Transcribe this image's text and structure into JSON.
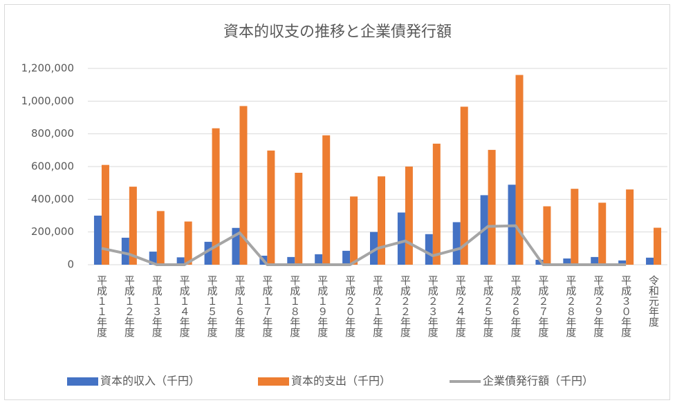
{
  "chart_data": {
    "type": "bar",
    "title": "資本的収支の推移と企業債発行額",
    "categories": [
      "平成１１年度",
      "平成１２年度",
      "平成１３年度",
      "平成１４年度",
      "平成１５年度",
      "平成１６年度",
      "平成１７年度",
      "平成１８年度",
      "平成１９年度",
      "平成２０年度",
      "平成２１年度",
      "平成２２年度",
      "平成２３年度",
      "平成２４年度",
      "平成２５年度",
      "平成２６年度",
      "平成２７年度",
      "平成２８年度",
      "平成２９年度",
      "平成３０年度",
      "令和元年度"
    ],
    "series": [
      {
        "name": "資本的収入（千円）",
        "type": "bar",
        "color": "#4472c4",
        "values": [
          300000,
          165000,
          80000,
          45000,
          140000,
          225000,
          55000,
          47000,
          64000,
          85000,
          200000,
          319000,
          187000,
          260000,
          425000,
          489000,
          30000,
          38000,
          47000,
          26000,
          43000
        ]
      },
      {
        "name": "資本的支出（千円）",
        "type": "bar",
        "color": "#ed7d31",
        "values": [
          610000,
          477000,
          328000,
          264000,
          834000,
          970000,
          698000,
          562000,
          791000,
          417000,
          540000,
          600000,
          740000,
          966000,
          702000,
          1160000,
          357000,
          464000,
          379000,
          460000,
          226000
        ]
      },
      {
        "name": "企業債発行額（千円）",
        "type": "line",
        "color": "#a5a5a5",
        "values": [
          100000,
          64000,
          0,
          0,
          100000,
          195000,
          0,
          0,
          0,
          0,
          100000,
          145000,
          55000,
          100000,
          234000,
          238000,
          0,
          0,
          0,
          0,
          null
        ]
      }
    ],
    "ylim": [
      0,
      1200000
    ],
    "yticks": [
      0,
      {
        "value": 200000,
        "label": "200,000"
      },
      {
        "value": 400000,
        "label": "400,000"
      },
      {
        "value": 600000,
        "label": "600,000"
      },
      {
        "value": 800000,
        "label": "800,000"
      },
      {
        "value": 1000000,
        "label": "1,000,000"
      },
      {
        "value": 1200000,
        "label": "1,200,000"
      }
    ],
    "grid": true
  }
}
